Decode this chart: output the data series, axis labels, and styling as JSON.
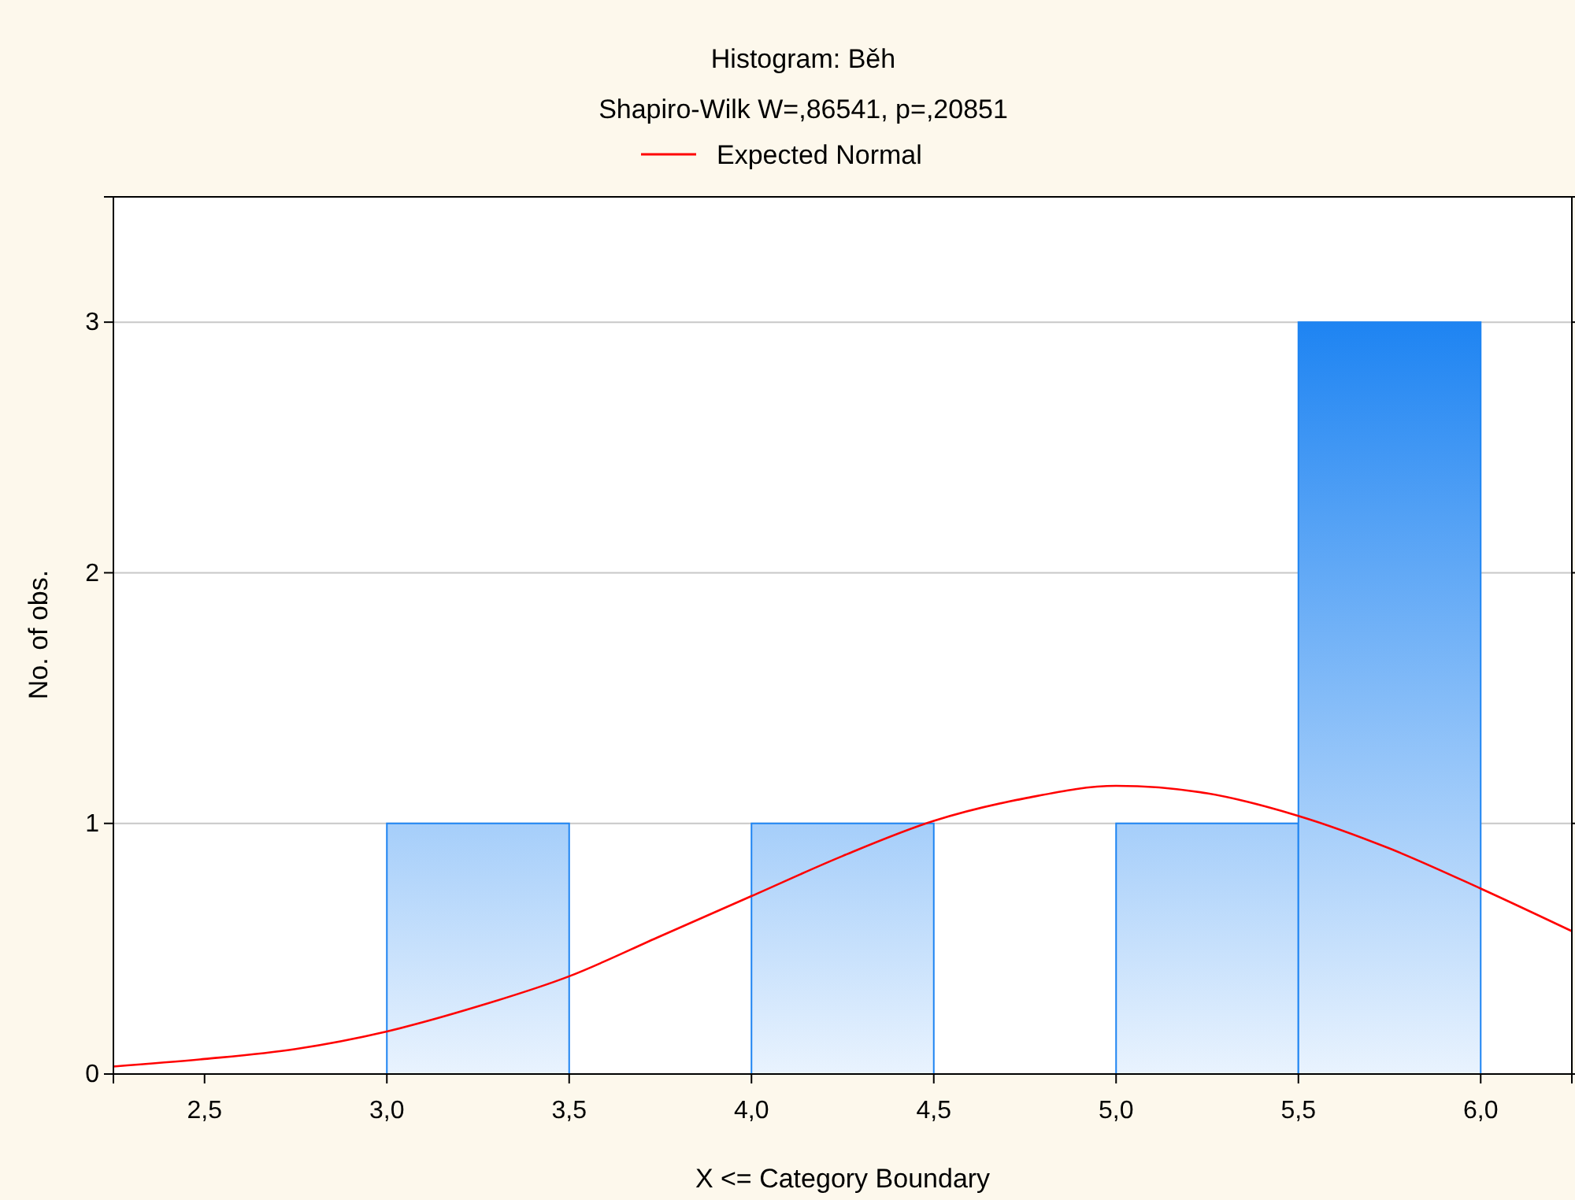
{
  "chart_data": {
    "type": "histogram",
    "title": "Histogram: Běh",
    "subtitle": "Shapiro-Wilk W=,86541, p=,20851",
    "xlabel": "X <= Category Boundary",
    "ylabel": "No. of obs.",
    "bins": [
      3.0,
      3.5,
      4.0,
      4.5,
      5.0,
      5.5,
      6.0
    ],
    "values": [
      1,
      0,
      1,
      0,
      1,
      3
    ],
    "color": "#1e84f2",
    "series": [
      {
        "type": "line",
        "name": "Expected Normal",
        "color": "#ff0000",
        "x": [
          2.25,
          2.5,
          2.75,
          3.0,
          3.25,
          3.5,
          3.75,
          4.0,
          4.25,
          4.5,
          4.75,
          5.0,
          5.25,
          5.5,
          5.75,
          6.0,
          6.25
        ],
        "values": [
          0.03,
          0.06,
          0.1,
          0.17,
          0.27,
          0.39,
          0.55,
          0.71,
          0.87,
          1.01,
          1.1,
          1.15,
          1.12,
          1.03,
          0.9,
          0.74,
          0.57
        ]
      }
    ],
    "xlim": [
      2.25,
      6.25
    ],
    "xticks": [
      {
        "value": 2.5,
        "label": "2,5"
      },
      {
        "value": 3.0,
        "label": "3,0"
      },
      {
        "value": 3.5,
        "label": "3,5"
      },
      {
        "value": 4.0,
        "label": "4,0"
      },
      {
        "value": 4.5,
        "label": "4,5"
      },
      {
        "value": 5.0,
        "label": "5,0"
      },
      {
        "value": 5.5,
        "label": "5,5"
      },
      {
        "value": 6.0,
        "label": "6,0"
      }
    ],
    "ylim": [
      0,
      3.5
    ],
    "yticks": [
      0,
      1,
      2,
      3
    ],
    "grid": "y",
    "legend": "top",
    "marker": "none",
    "line_style": "solid"
  }
}
